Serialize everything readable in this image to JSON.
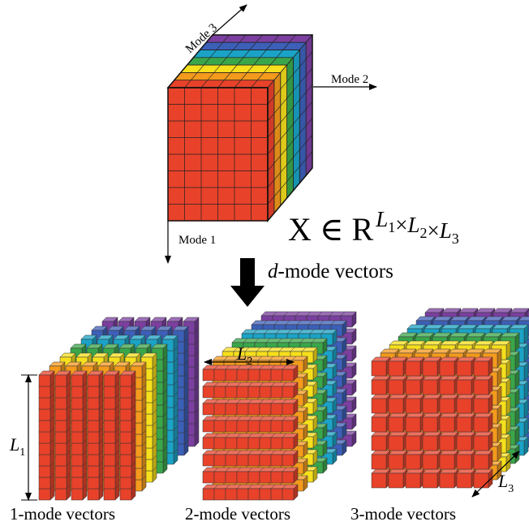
{
  "axes": {
    "mode3": "Mode 3",
    "mode2": "Mode 2",
    "mode1": "Mode 1"
  },
  "formula": {
    "lhs": "X ∈ R",
    "exponent": [
      {
        "main": "L",
        "sub": "1"
      },
      {
        "main": "×"
      },
      {
        "main": "L",
        "sub": "2"
      },
      {
        "main": "×"
      },
      {
        "main": "L",
        "sub": "3"
      }
    ]
  },
  "arrow_label": {
    "variable": "d",
    "text": "-mode vectors"
  },
  "panels": [
    {
      "caption": "1-mode vectors",
      "dimension": {
        "main": "L",
        "sub": "1"
      }
    },
    {
      "caption": "2-mode vectors",
      "dimension": {
        "main": "L",
        "sub": "2"
      }
    },
    {
      "caption": "3-mode vectors",
      "dimension": {
        "main": "L",
        "sub": "3"
      }
    }
  ]
}
